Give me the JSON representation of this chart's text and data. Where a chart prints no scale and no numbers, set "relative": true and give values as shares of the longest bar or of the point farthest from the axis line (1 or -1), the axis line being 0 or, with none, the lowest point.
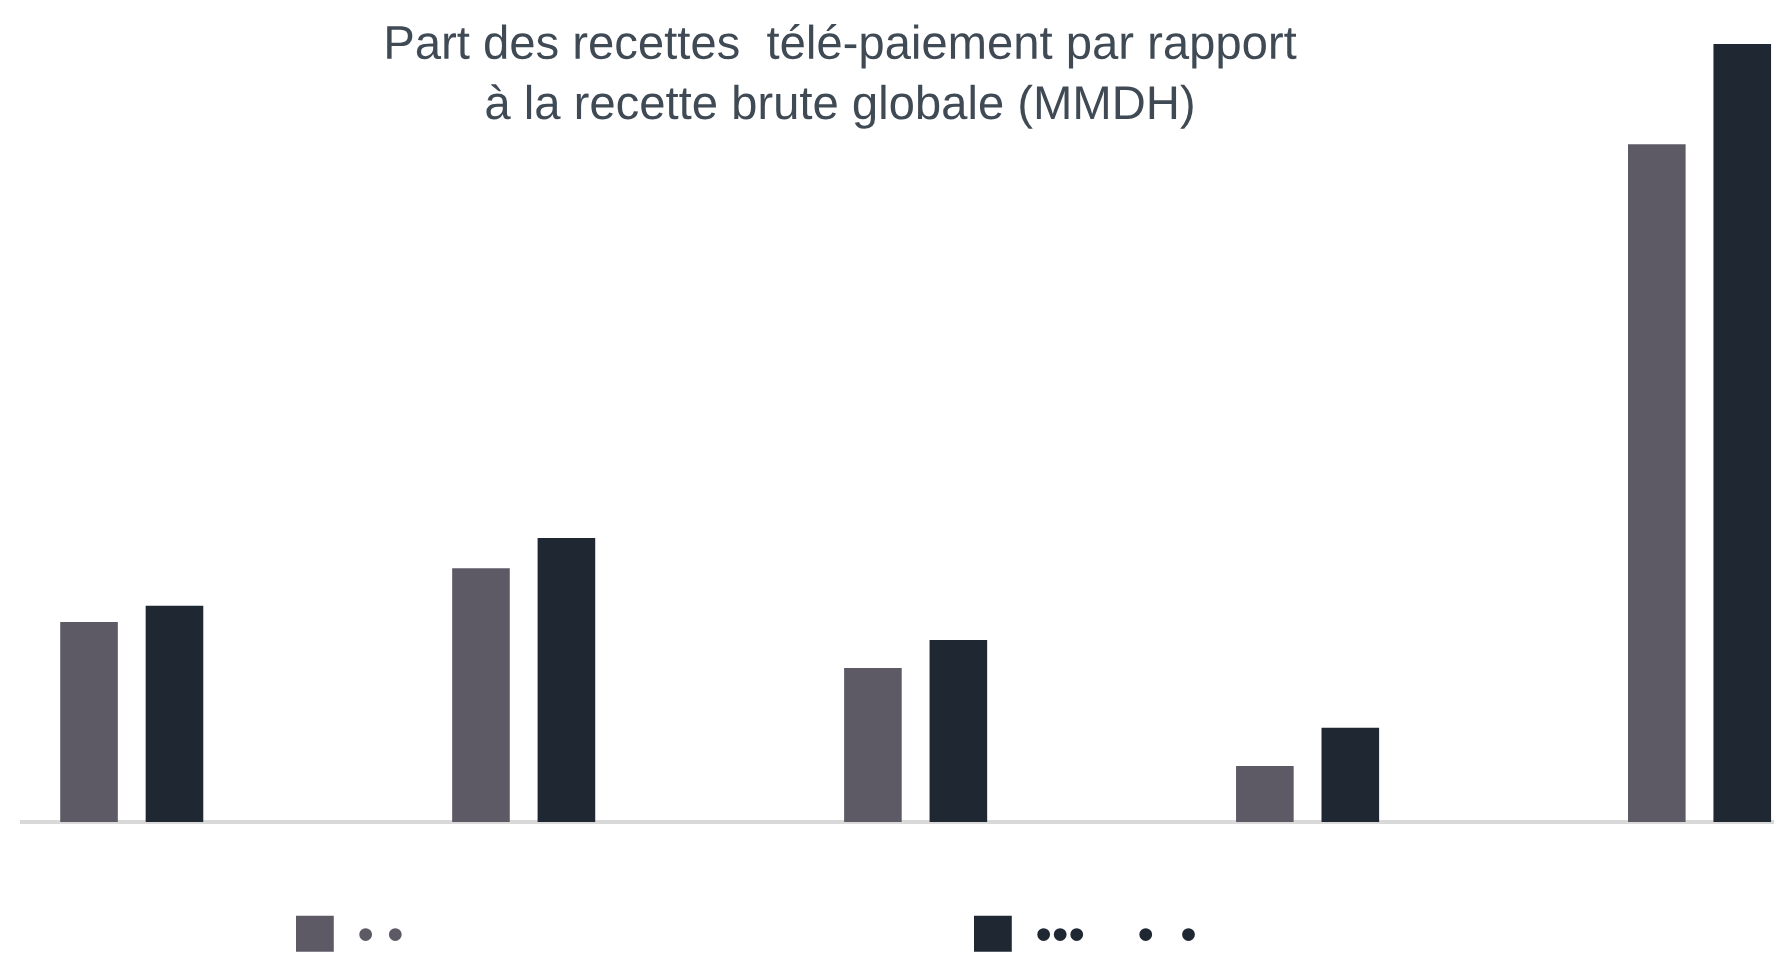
{
  "chart_data": {
    "type": "bar",
    "title": "Part des recettes  télé-paiement par rapport\nà la recette brute globale (MMDH)",
    "categories": [
      null,
      null,
      null,
      null,
      null
    ],
    "relative": true,
    "series": [
      {
        "name": "• •",
        "color": "#5d5a66",
        "values": [
          0.257,
          0.326,
          0.198,
          0.072,
          0.871
        ]
      },
      {
        "name": "•••    •  •",
        "color": "#1f2832",
        "values": [
          0.278,
          0.365,
          0.234,
          0.121,
          1
        ]
      }
    ],
    "legend": "bottom"
  }
}
